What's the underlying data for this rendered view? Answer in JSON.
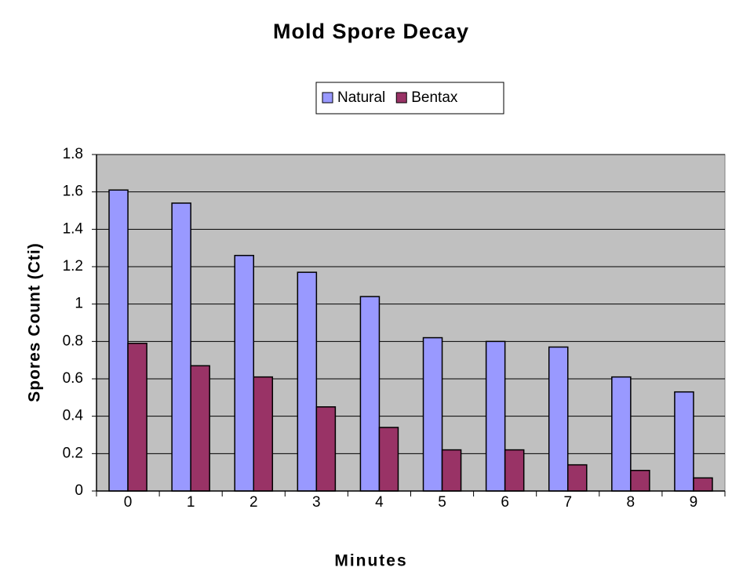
{
  "chart_data": {
    "type": "bar",
    "title": "Mold Spore Decay",
    "x_label": "Minutes",
    "y_label": "Spores Count (Cti)",
    "categories": [
      "0",
      "1",
      "2",
      "3",
      "4",
      "5",
      "6",
      "7",
      "8",
      "9"
    ],
    "series": [
      {
        "name": "Natural",
        "color": "#9999ff",
        "values": [
          1.61,
          1.54,
          1.26,
          1.17,
          1.04,
          0.82,
          0.8,
          0.77,
          0.61,
          0.53
        ]
      },
      {
        "name": "Bentax",
        "color": "#993366",
        "values": [
          0.79,
          0.67,
          0.61,
          0.45,
          0.34,
          0.22,
          0.22,
          0.14,
          0.11,
          0.07
        ]
      }
    ],
    "ylim": [
      0,
      1.8
    ],
    "yticks": [
      0,
      0.2,
      0.4,
      0.6,
      0.8,
      1,
      1.2,
      1.4,
      1.6,
      1.8
    ],
    "grid": true,
    "legend": "top"
  }
}
